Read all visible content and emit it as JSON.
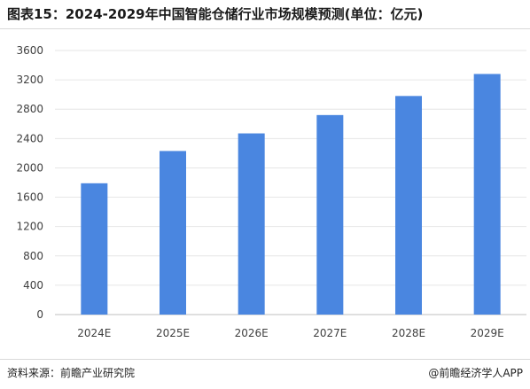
{
  "title": "图表15：2024-2029年中国智能仓储行业市场规模预测(单位：亿元)",
  "footer": {
    "source": "资料来源：前瞻产业研究院",
    "credit": "@前瞻经济学人APP"
  },
  "colors": {
    "bar": "#4a86e0",
    "grid": "#e6e6e6",
    "axis": "#bfbfbf",
    "text": "#404040"
  },
  "chart_data": {
    "type": "bar",
    "title": "图表15：2024-2029年中国智能仓储行业市场规模预测(单位：亿元)",
    "xlabel": "",
    "ylabel": "",
    "categories": [
      "2024E",
      "2025E",
      "2026E",
      "2027E",
      "2028E",
      "2029E"
    ],
    "values": [
      1790,
      2230,
      2470,
      2720,
      2980,
      3280
    ],
    "ylim": [
      0,
      3600
    ],
    "yticks": [
      0,
      400,
      800,
      1200,
      1600,
      2000,
      2400,
      2800,
      3200,
      3600
    ],
    "grid": true,
    "legend": "none"
  }
}
